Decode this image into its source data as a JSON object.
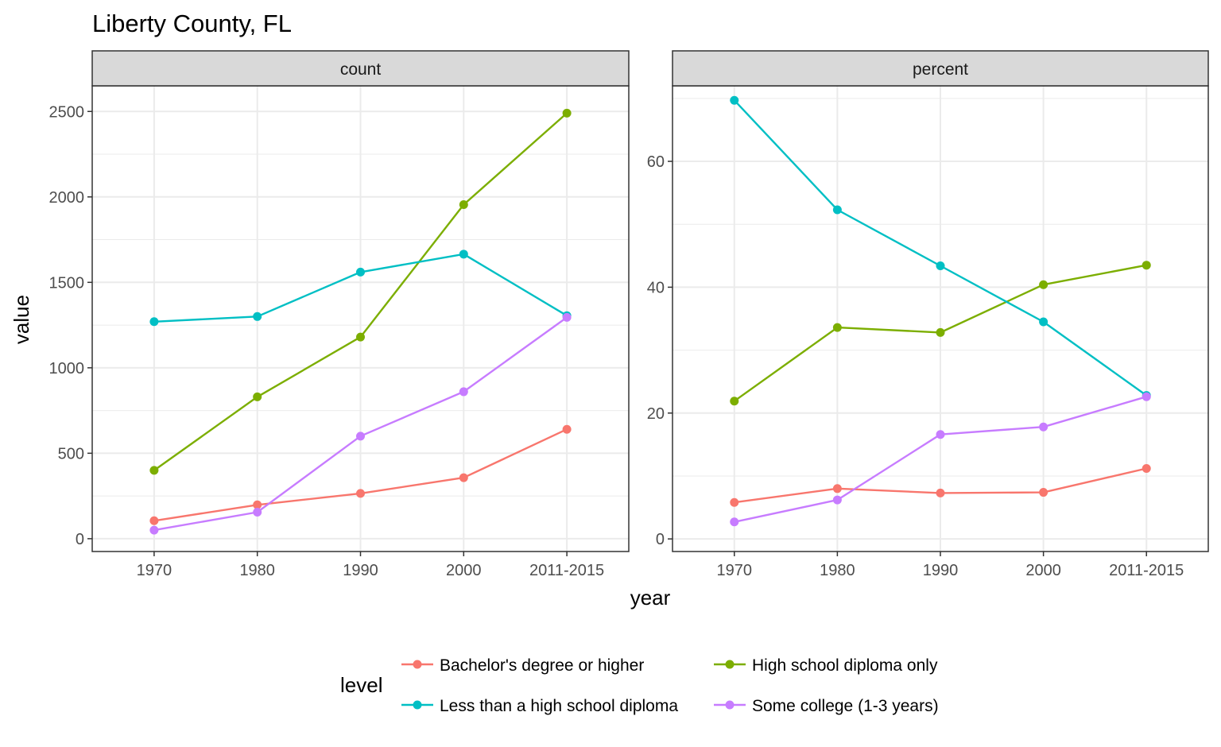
{
  "chart_data": {
    "type": "line",
    "title": "Liberty County, FL",
    "xlabel": "year",
    "ylabel": "value",
    "categories": [
      "1970",
      "1980",
      "1990",
      "2000",
      "2011-2015"
    ],
    "legend": {
      "title": "level",
      "placement": "bottom",
      "entries": [
        {
          "name": "Bachelor's degree or higher",
          "color": "#F8766D"
        },
        {
          "name": "High school diploma only",
          "color": "#7CAE00"
        },
        {
          "name": "Less than a high school diploma",
          "color": "#00BFC4"
        },
        {
          "name": "Some college (1-3 years)",
          "color": "#C77CFF"
        }
      ]
    },
    "grid": true,
    "panels": [
      {
        "label": "count",
        "ylim": [
          -75,
          2650
        ],
        "yticks": [
          0,
          500,
          1000,
          1500,
          2000,
          2500
        ],
        "series": [
          {
            "name": "Bachelor's degree or higher",
            "color": "#F8766D",
            "values": [
              105,
              198,
              265,
              357,
              640
            ]
          },
          {
            "name": "High school diploma only",
            "color": "#7CAE00",
            "values": [
              400,
              830,
              1180,
              1955,
              2490
            ]
          },
          {
            "name": "Less than a high school diploma",
            "color": "#00BFC4",
            "values": [
              1270,
              1300,
              1560,
              1665,
              1305
            ]
          },
          {
            "name": "Some college (1-3 years)",
            "color": "#C77CFF",
            "values": [
              50,
              155,
              600,
              860,
              1295
            ]
          }
        ]
      },
      {
        "label": "percent",
        "ylim": [
          -2,
          72
        ],
        "yticks": [
          0,
          20,
          40,
          60
        ],
        "series": [
          {
            "name": "Bachelor's degree or higher",
            "color": "#F8766D",
            "values": [
              5.8,
              8.0,
              7.3,
              7.4,
              11.2
            ]
          },
          {
            "name": "High school diploma only",
            "color": "#7CAE00",
            "values": [
              21.9,
              33.6,
              32.8,
              40.4,
              43.5
            ]
          },
          {
            "name": "Less than a high school diploma",
            "color": "#00BFC4",
            "values": [
              69.7,
              52.3,
              43.4,
              34.5,
              22.8
            ]
          },
          {
            "name": "Some college (1-3 years)",
            "color": "#C77CFF",
            "values": [
              2.7,
              6.2,
              16.6,
              17.8,
              22.6
            ]
          }
        ]
      }
    ]
  }
}
